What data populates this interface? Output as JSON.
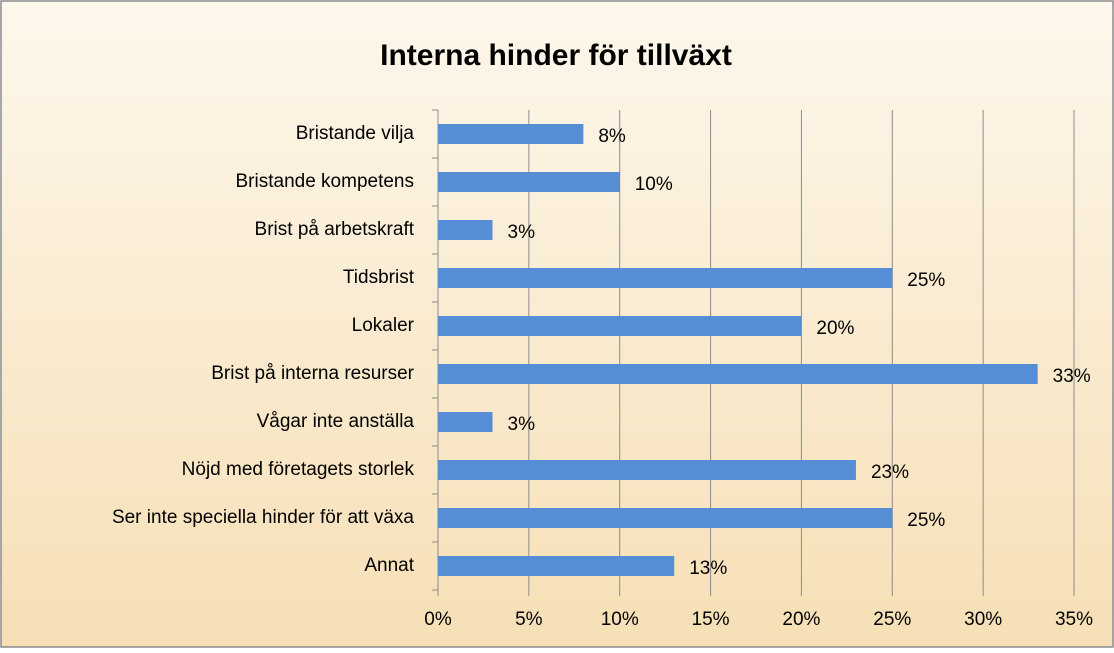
{
  "chart_data": {
    "type": "bar",
    "orientation": "horizontal",
    "title": "Interna hinder för tillväxt",
    "categories": [
      "Bristande vilja",
      "Bristande kompetens",
      "Brist på arbetskraft",
      "Tidsbrist",
      "Lokaler",
      "Brist på interna resurser",
      "Vågar inte anställa",
      "Nöjd med företagets storlek",
      "Ser inte speciella hinder för att växa",
      "Annat"
    ],
    "values": [
      8,
      10,
      3,
      25,
      20,
      33,
      3,
      23,
      25,
      13
    ],
    "value_labels": [
      "8%",
      "10%",
      "3%",
      "25%",
      "20%",
      "33%",
      "3%",
      "23%",
      "25%",
      "13%"
    ],
    "color": "#558ed5",
    "xlim": [
      0,
      35
    ],
    "xticks": [
      {
        "value": 0,
        "label": "0%"
      },
      {
        "value": 5,
        "label": "5%"
      },
      {
        "value": 10,
        "label": "10%"
      },
      {
        "value": 15,
        "label": "15%"
      },
      {
        "value": 20,
        "label": "20%"
      },
      {
        "value": 25,
        "label": "25%"
      },
      {
        "value": 30,
        "label": "30%"
      },
      {
        "value": 35,
        "label": "35%"
      }
    ],
    "grid": true
  }
}
